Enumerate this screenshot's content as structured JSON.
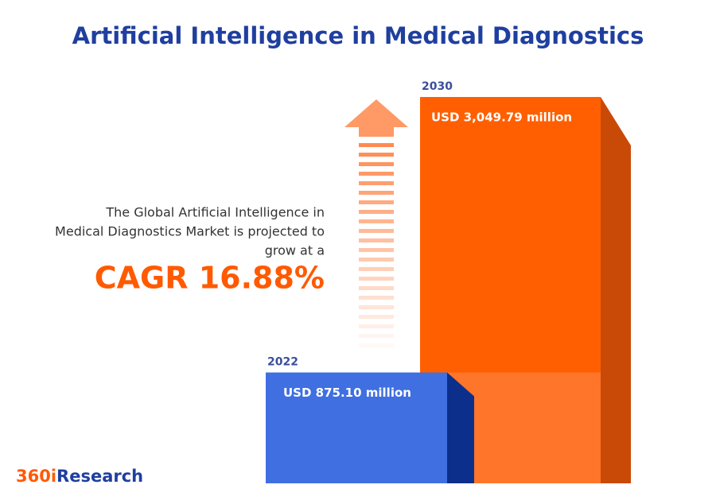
{
  "chart_data": {
    "type": "bar",
    "title": "Artificial Intelligence in Medical Diagnostics",
    "categories": [
      "2022",
      "2030"
    ],
    "values": [
      875.1,
      3049.79
    ],
    "value_labels": [
      "USD 875.10 million",
      "USD 3,049.79 million"
    ],
    "colors": [
      "#3f6fe0",
      "#ff5f00"
    ],
    "annotations": [
      "The Global Artificial Intelligence in",
      "Medical Diagnostics Market is projected to",
      "grow at a"
    ],
    "cagr": "CAGR 16.88%",
    "logo": [
      "360i",
      "Research"
    ]
  }
}
